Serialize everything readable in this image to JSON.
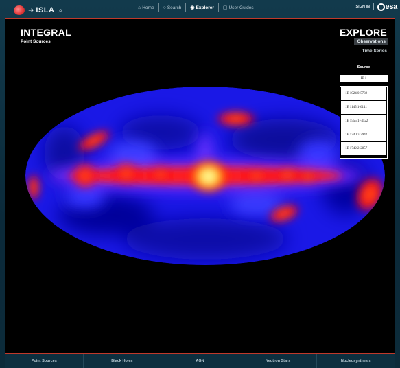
{
  "topbar": {
    "brand": "ISLA",
    "nav": [
      {
        "label": "Home",
        "icon": "home-icon"
      },
      {
        "label": "Search",
        "icon": "search-icon"
      },
      {
        "label": "Explorer",
        "icon": "eye-icon",
        "active": true
      },
      {
        "label": "User Guides",
        "icon": "book-icon"
      }
    ],
    "signin": "SIGN IN",
    "esa": "esa"
  },
  "panel": {
    "title": "INTEGRAL",
    "subtitle": "Point Sources",
    "explore_title": "EXPLORE",
    "options": [
      "Observations",
      "Time Series"
    ]
  },
  "source": {
    "label": "Source",
    "selected": "IE 1",
    "items": [
      "1E 1024.0-5732",
      "1E 1145.1-6141",
      "1E 1555.1+4522",
      "1E 1740.7-2942",
      "1E 1742.2-2857"
    ]
  },
  "tabs": [
    "Point Sources",
    "Black Holes",
    "AGN",
    "Neutron Stars",
    "Nucleosynthesis"
  ],
  "colors": {
    "accent": "#c0392b",
    "nav_bg": "#0b2a3a",
    "panel_bg": "#000000"
  }
}
